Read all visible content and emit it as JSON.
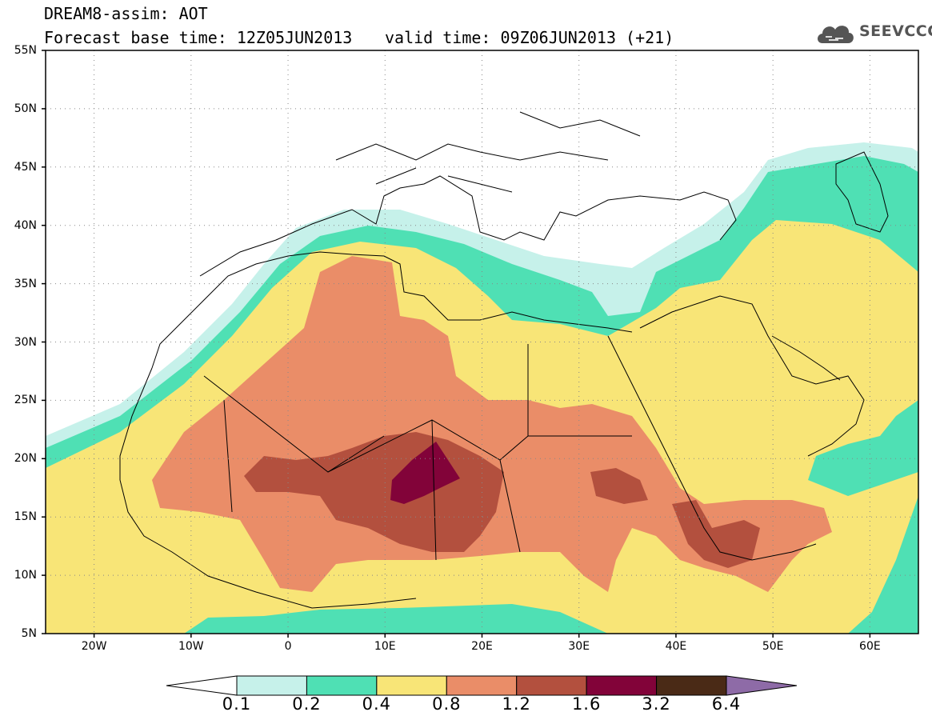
{
  "header": {
    "title": "DREAM8-assim: AOT",
    "base_time": "Forecast base time: 12Z05JUN2013",
    "valid_time": "valid time: 09Z06JUN2013 (+21)",
    "logo_text": "SEEVCCC"
  },
  "map": {
    "lat_range": [
      5,
      55
    ],
    "lon_range": [
      -25,
      65
    ],
    "lat_labels": [
      "55N",
      "50N",
      "45N",
      "40N",
      "35N",
      "30N",
      "25N",
      "20N",
      "15N",
      "10N",
      "5N"
    ],
    "lon_labels": [
      "20W",
      "10W",
      "0",
      "10E",
      "20E",
      "30E",
      "40E",
      "50E",
      "60E"
    ],
    "background": "#ffffff",
    "boundary_color": "#000000",
    "grid": "dotted"
  },
  "chart_data": {
    "type": "heatmap",
    "variable": "AOT",
    "levels": [
      "0.1",
      "0.2",
      "0.4",
      "0.8",
      "1.2",
      "1.6",
      "3.2",
      "6.4"
    ],
    "colors": [
      "#c6f1ea",
      "#4fe0b4",
      "#f8e577",
      "#ea8d68",
      "#b3503e",
      "#820339",
      "#4a2a16",
      "#8e6ba7"
    ]
  }
}
